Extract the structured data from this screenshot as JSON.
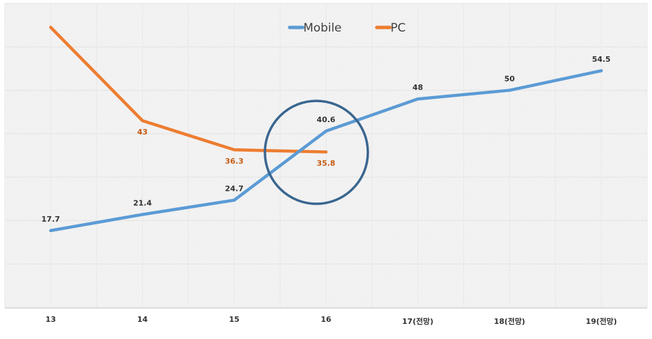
{
  "chart_data": {
    "type": "line",
    "title": "",
    "xlabel": "",
    "ylabel": "",
    "categories": [
      "13",
      "14",
      "15",
      "16",
      "17(전망)",
      "18(전망)",
      "19(전망)"
    ],
    "series": [
      {
        "name": "Mobile",
        "color": "#5b9bd5",
        "values": [
          17.7,
          21.4,
          24.7,
          40.6,
          48,
          50,
          54.5
        ],
        "labels": [
          "17.7",
          "21.4",
          "24.7",
          "40.6",
          "48",
          "50",
          "54.5"
        ],
        "label_color": "#333333"
      },
      {
        "name": "PC",
        "color": "#ed7d31",
        "values": [
          64.5,
          43,
          36.3,
          35.8,
          null,
          null,
          null
        ],
        "labels": [
          "",
          "43",
          "36.3",
          "35.8",
          "",
          "",
          ""
        ],
        "label_color": "#c55a11"
      }
    ],
    "ylim": [
      0,
      70
    ],
    "y_gridlines": [
      0,
      10,
      20,
      30,
      40,
      50,
      60,
      70
    ],
    "grid": true,
    "y_axis_labels_visible": false,
    "legend_position": "top-center",
    "annotations": [
      {
        "type": "circle",
        "description": "Highlight of Mobile/PC crossover around 15-16",
        "color": "#3a6690"
      }
    ],
    "background": "#f2f2f2"
  },
  "legend": {
    "items": [
      {
        "label": "Mobile",
        "color": "#5b9bd5"
      },
      {
        "label": "PC",
        "color": "#ed7d31"
      }
    ]
  }
}
